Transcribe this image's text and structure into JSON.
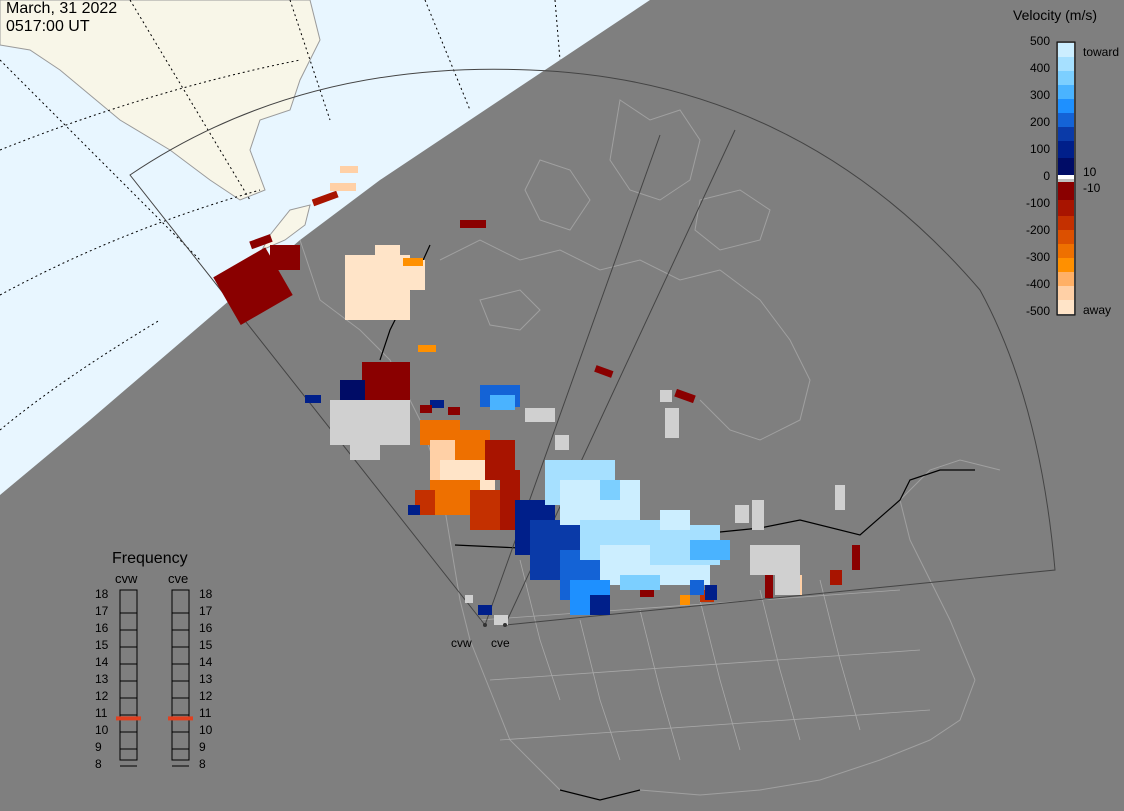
{
  "header": {
    "date": "March, 31 2022",
    "time": "0517:00 UT"
  },
  "colorbar": {
    "title": "Velocity (m/s)",
    "ticks": [
      "500",
      "400",
      "300",
      "200",
      "100",
      "0",
      "-100",
      "-200",
      "-300",
      "-400",
      "-500"
    ],
    "inner_labels": {
      "pos": "10",
      "neg": "-10"
    },
    "end_labels": {
      "top": "toward",
      "bottom": "away"
    },
    "colors_toward": [
      "#cceeff",
      "#a6e0ff",
      "#7ccfff",
      "#4ab3ff",
      "#1e90ff",
      "#1463d6",
      "#0a3aa8",
      "#001f8a",
      "#000c66"
    ],
    "colors_away": [
      "#8a0000",
      "#a81400",
      "#c43000",
      "#dc5000",
      "#ee7000",
      "#ff9000",
      "#ffb066",
      "#ffd0a6",
      "#ffe4c8"
    ]
  },
  "frequency_panel": {
    "title": "Frequency",
    "radars": [
      "cvw",
      "cve"
    ],
    "scale": [
      "18",
      "17",
      "16",
      "15",
      "14",
      "13",
      "12",
      "11",
      "10",
      "9",
      "8"
    ],
    "cvw_mhz": 10.8,
    "cve_mhz": 10.8,
    "marker_color": "#e04020"
  },
  "map": {
    "radar_labels": [
      "cvw",
      "cve"
    ],
    "land_color": "#808080",
    "ocean_color": "#e8f6ff",
    "sunlit_land_color": "#f8f6e8",
    "grid_color": "#000000",
    "coast_color": "#9a9a9a"
  },
  "chart_data": {
    "type": "heatmap",
    "title": "",
    "description_of_scale": "Line-of-sight velocity, m/s",
    "value_range": [
      -500,
      500
    ],
    "series": [
      {
        "name": "cvw",
        "dominant_values": "mostly -10 to -500"
      },
      {
        "name": "cve",
        "dominant_values": "mostly +100 to +500"
      }
    ]
  }
}
